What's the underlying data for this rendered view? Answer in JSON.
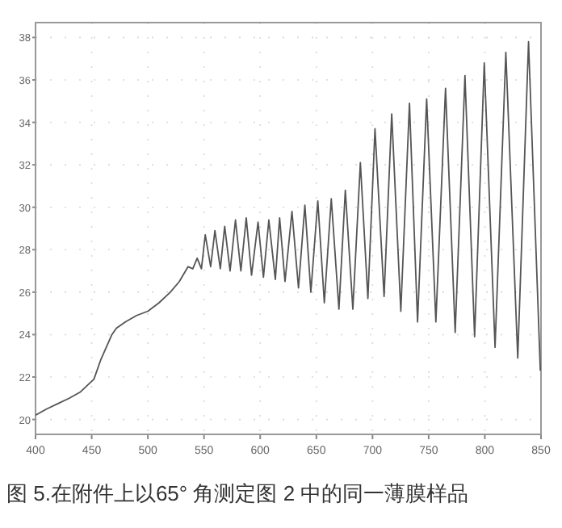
{
  "chart_data": {
    "type": "line",
    "annotations": [
      "图 5.在附件上以65° 角测定图 2 中的同一薄膜样品"
    ],
    "x": [
      400,
      410,
      420,
      430,
      440,
      448,
      452,
      458,
      463,
      468,
      472,
      480,
      490,
      500,
      510,
      520,
      528,
      535.8,
      540,
      543.9,
      547.7,
      551.1,
      555.9,
      559.7,
      564.5,
      568.4,
      573.2,
      578,
      582.8,
      587.6,
      592.3,
      598.1,
      602.9,
      607.7,
      613.5,
      617.3,
      622.1,
      628.3,
      634.1,
      639.8,
      645.1,
      651.3,
      657.1,
      663.3,
      670.1,
      675.8,
      682.5,
      689.2,
      695.9,
      702.2,
      710.3,
      717.1,
      725.2,
      732.9,
      740.1,
      748.2,
      756.4,
      765,
      773.6,
      782.3,
      790.9,
      799.5,
      809.1,
      818.7,
      829.3,
      838.9,
      849.4
    ],
    "series": [
      {
        "color": "#555555",
        "values": [
          20.2,
          20.5,
          20.75,
          21.0,
          21.3,
          21.7,
          21.9,
          22.8,
          23.4,
          24.0,
          24.3,
          24.6,
          24.9,
          25.1,
          25.5,
          26.0,
          26.5,
          27.2,
          27.1,
          27.6,
          27.1,
          28.7,
          27.2,
          28.9,
          27.1,
          29.1,
          27.0,
          29.4,
          27.0,
          29.5,
          26.8,
          29.3,
          26.7,
          29.4,
          26.6,
          29.5,
          26.5,
          29.8,
          26.2,
          30.1,
          26.0,
          30.3,
          25.5,
          30.4,
          25.2,
          30.8,
          25.2,
          32.1,
          25.7,
          33.7,
          25.8,
          34.4,
          25.1,
          34.9,
          24.6,
          35.1,
          24.6,
          35.6,
          24.1,
          36.2,
          23.9,
          36.8,
          23.4,
          37.3,
          22.9,
          37.8,
          22.3
        ]
      }
    ],
    "xlim": [
      400,
      850
    ],
    "ylim": [
      19.3,
      38.7
    ],
    "xticks": [
      400,
      450,
      500,
      550,
      600,
      650,
      700,
      750,
      800,
      850
    ],
    "yticks": [
      20,
      22,
      24,
      26,
      28,
      30,
      32,
      34,
      36,
      38
    ],
    "grid": true
  }
}
